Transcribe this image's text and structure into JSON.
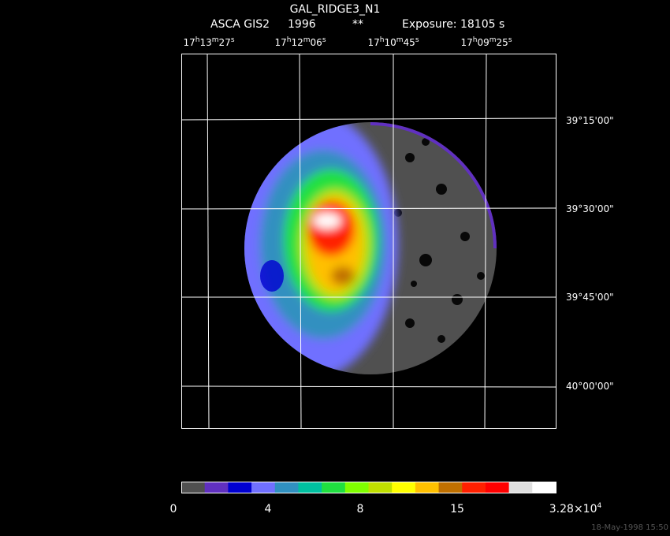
{
  "header": {
    "title": "GAL_RIDGE3_N1",
    "instrument": "ASCA GIS2",
    "year": "1996",
    "flag": "**",
    "exposure": "Exposure: 18105 s"
  },
  "ra_labels": [
    [
      "17",
      "h",
      "13",
      "m",
      "27",
      "s"
    ],
    [
      "17",
      "h",
      "12",
      "m",
      "06",
      "s"
    ],
    [
      "17",
      "h",
      "10",
      "m",
      "45",
      "s"
    ],
    [
      "17",
      "h",
      "09",
      "m",
      "25",
      "s"
    ]
  ],
  "dec_labels": [
    "39°15'00\"",
    "39°30'00\"",
    "39°45'00\"",
    "40°00'00\""
  ],
  "colorbar": {
    "colors": [
      "#505050",
      "#6030c0",
      "#0000d0",
      "#7070ff",
      "#3090c0",
      "#00c0a0",
      "#20e040",
      "#80ff00",
      "#c0e000",
      "#ffff00",
      "#ffc000",
      "#c07000",
      "#ff2000",
      "#ff0000",
      "#e0e0e0",
      "#ffffff"
    ],
    "labels": [
      "0",
      "4",
      "8",
      "15"
    ],
    "max": {
      "mantissa": "3.28×10",
      "exponent": "4"
    }
  },
  "timestamp": "18-May-1998 15:50"
}
